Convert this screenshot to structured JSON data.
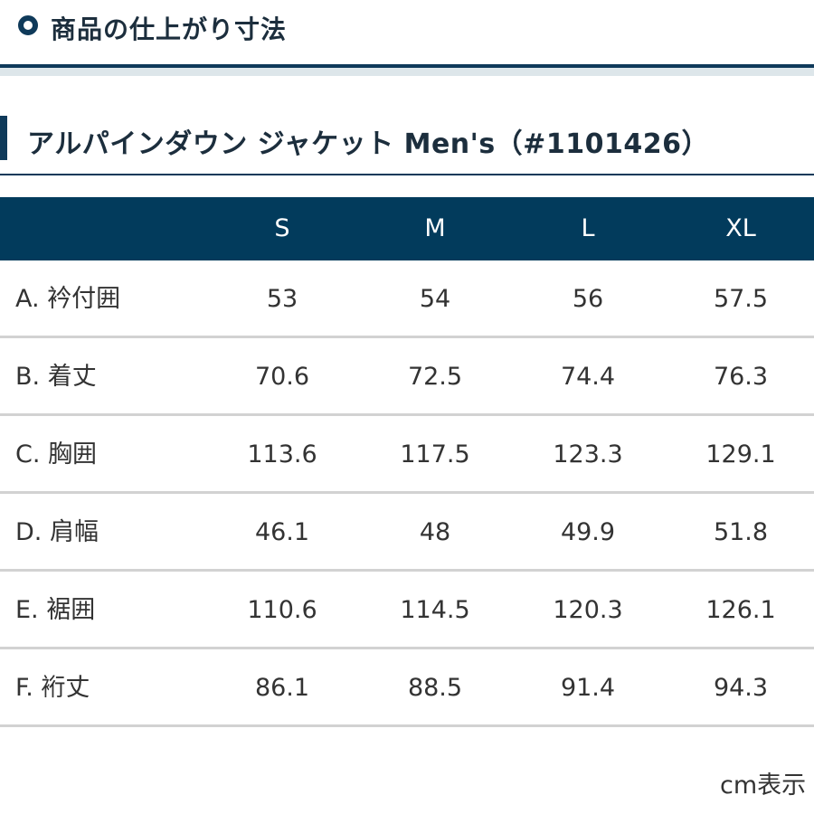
{
  "section": {
    "icon": "ring-icon",
    "title": "商品の仕上がり寸法"
  },
  "product": {
    "title": "アルパインダウン ジャケット Men's（#1101426）"
  },
  "table": {
    "header": {
      "label": "",
      "sizes": [
        "S",
        "M",
        "L",
        "XL"
      ]
    },
    "rows": [
      {
        "label": "A. 衿付囲",
        "values": [
          "53",
          "54",
          "56",
          "57.5"
        ]
      },
      {
        "label": "B. 着丈",
        "values": [
          "70.6",
          "72.5",
          "74.4",
          "76.3"
        ]
      },
      {
        "label": "C. 胸囲",
        "values": [
          "113.6",
          "117.5",
          "123.3",
          "129.1"
        ]
      },
      {
        "label": "D. 肩幅",
        "values": [
          "46.1",
          "48",
          "49.9",
          "51.8"
        ]
      },
      {
        "label": "E. 裾囲",
        "values": [
          "110.6",
          "114.5",
          "120.3",
          "126.1"
        ]
      },
      {
        "label": "F. 裄丈",
        "values": [
          "86.1",
          "88.5",
          "91.4",
          "94.3"
        ]
      }
    ]
  },
  "footer": {
    "unit_note": "cm表示"
  },
  "colors": {
    "navy": "#023b5c",
    "accent_dark": "#0f3a5a",
    "band": "#dde6ea",
    "row_divider": "#d2d2d2",
    "text": "#333333"
  }
}
